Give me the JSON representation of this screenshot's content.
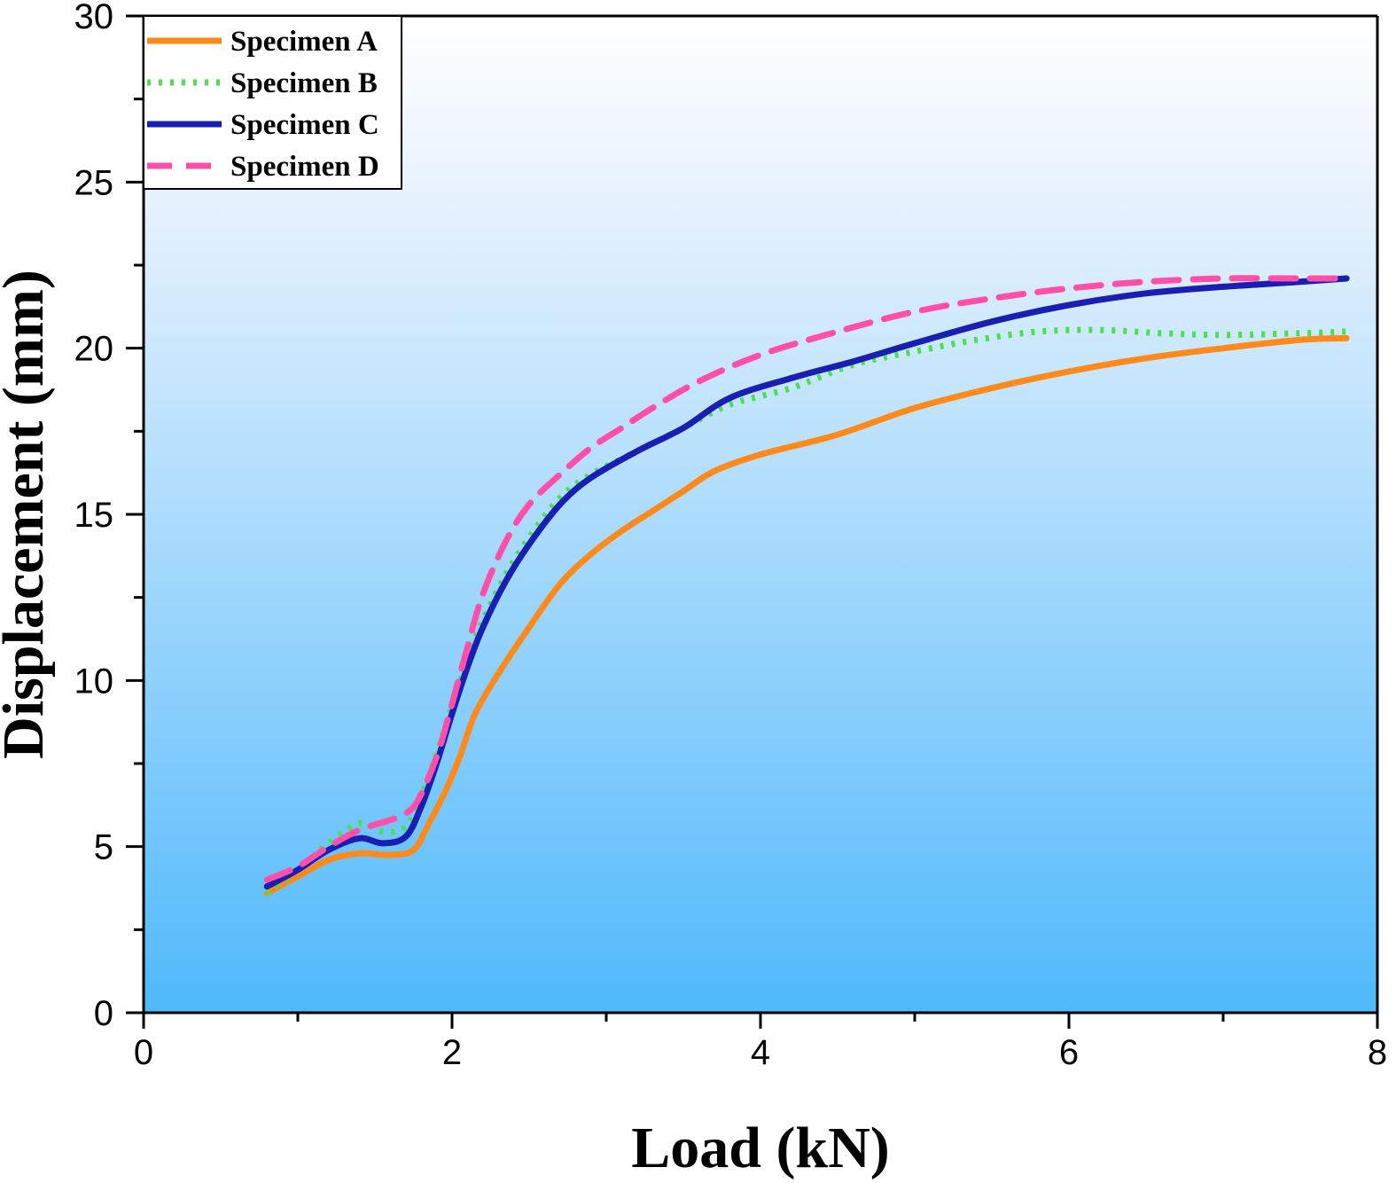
{
  "chart_data": {
    "type": "line",
    "title": "",
    "xlabel": "Load (kN)",
    "ylabel": "Displacement (mm)",
    "xlim": [
      0,
      8
    ],
    "ylim": [
      0,
      30
    ],
    "x_ticks": [
      0,
      2,
      4,
      6,
      8
    ],
    "y_ticks": [
      0,
      5,
      10,
      15,
      20,
      25,
      30
    ],
    "x_minor_step": 1,
    "y_minor_step": 2.5,
    "grid": false,
    "legend_position": "top-left",
    "background": "vertical gradient from white (top) to light blue #4fb9fb (bottom)",
    "series": [
      {
        "name": "Specimen A",
        "color": "#ff8a1c",
        "style": "solid",
        "x": [
          0.8,
          1.0,
          1.2,
          1.4,
          1.6,
          1.75,
          1.85,
          1.95,
          2.05,
          2.15,
          2.3,
          2.5,
          2.7,
          2.9,
          3.1,
          3.3,
          3.5,
          3.7,
          4.0,
          4.5,
          5.0,
          5.5,
          6.0,
          6.5,
          7.0,
          7.5,
          7.8
        ],
        "y": [
          3.6,
          4.1,
          4.6,
          4.8,
          4.75,
          4.9,
          5.7,
          6.6,
          7.7,
          9.0,
          10.2,
          11.6,
          12.9,
          13.8,
          14.5,
          15.1,
          15.7,
          16.3,
          16.8,
          17.4,
          18.2,
          18.8,
          19.3,
          19.7,
          20.0,
          20.25,
          20.3
        ]
      },
      {
        "name": "Specimen B",
        "color": "#4ce04c",
        "style": "dotted",
        "x": [
          0.8,
          1.0,
          1.2,
          1.4,
          1.55,
          1.7,
          1.8,
          1.9,
          2.0,
          2.1,
          2.2,
          2.35,
          2.5,
          2.7,
          2.9,
          3.2,
          3.5,
          3.8,
          4.2,
          4.6,
          5.0,
          5.4,
          5.8,
          6.2,
          6.6,
          7.0,
          7.5,
          7.8
        ],
        "y": [
          3.6,
          4.3,
          5.1,
          5.7,
          5.45,
          5.6,
          6.5,
          7.8,
          9.2,
          10.6,
          11.8,
          13.2,
          14.3,
          15.5,
          16.2,
          16.9,
          17.6,
          18.3,
          18.8,
          19.5,
          19.9,
          20.25,
          20.5,
          20.55,
          20.45,
          20.4,
          20.45,
          20.5
        ]
      },
      {
        "name": "Specimen C",
        "color": "#1a1fb3",
        "style": "solid",
        "x": [
          0.8,
          1.0,
          1.2,
          1.4,
          1.55,
          1.7,
          1.8,
          1.9,
          2.0,
          2.1,
          2.2,
          2.35,
          2.5,
          2.7,
          2.9,
          3.2,
          3.5,
          3.8,
          4.2,
          4.6,
          5.0,
          5.5,
          6.0,
          6.5,
          7.0,
          7.5,
          7.8
        ],
        "y": [
          3.8,
          4.3,
          4.9,
          5.25,
          5.1,
          5.3,
          6.2,
          7.5,
          9.0,
          10.4,
          11.6,
          13.0,
          14.1,
          15.3,
          16.1,
          16.9,
          17.6,
          18.5,
          19.1,
          19.6,
          20.15,
          20.8,
          21.3,
          21.65,
          21.85,
          22.0,
          22.1
        ]
      },
      {
        "name": "Specimen D",
        "color": "#ff4fa8",
        "style": "dashed",
        "x": [
          0.8,
          1.0,
          1.2,
          1.4,
          1.6,
          1.7,
          1.78,
          1.9,
          2.0,
          2.1,
          2.2,
          2.35,
          2.5,
          2.7,
          2.9,
          3.1,
          3.3,
          3.6,
          4.0,
          4.5,
          5.0,
          5.5,
          6.0,
          6.5,
          7.0,
          7.5,
          7.8
        ],
        "y": [
          4.0,
          4.4,
          5.0,
          5.5,
          5.8,
          6.0,
          6.4,
          7.7,
          9.3,
          11.0,
          12.6,
          14.2,
          15.3,
          16.2,
          17.0,
          17.6,
          18.2,
          19.0,
          19.8,
          20.5,
          21.1,
          21.5,
          21.8,
          22.0,
          22.1,
          22.1,
          22.1
        ]
      }
    ]
  }
}
